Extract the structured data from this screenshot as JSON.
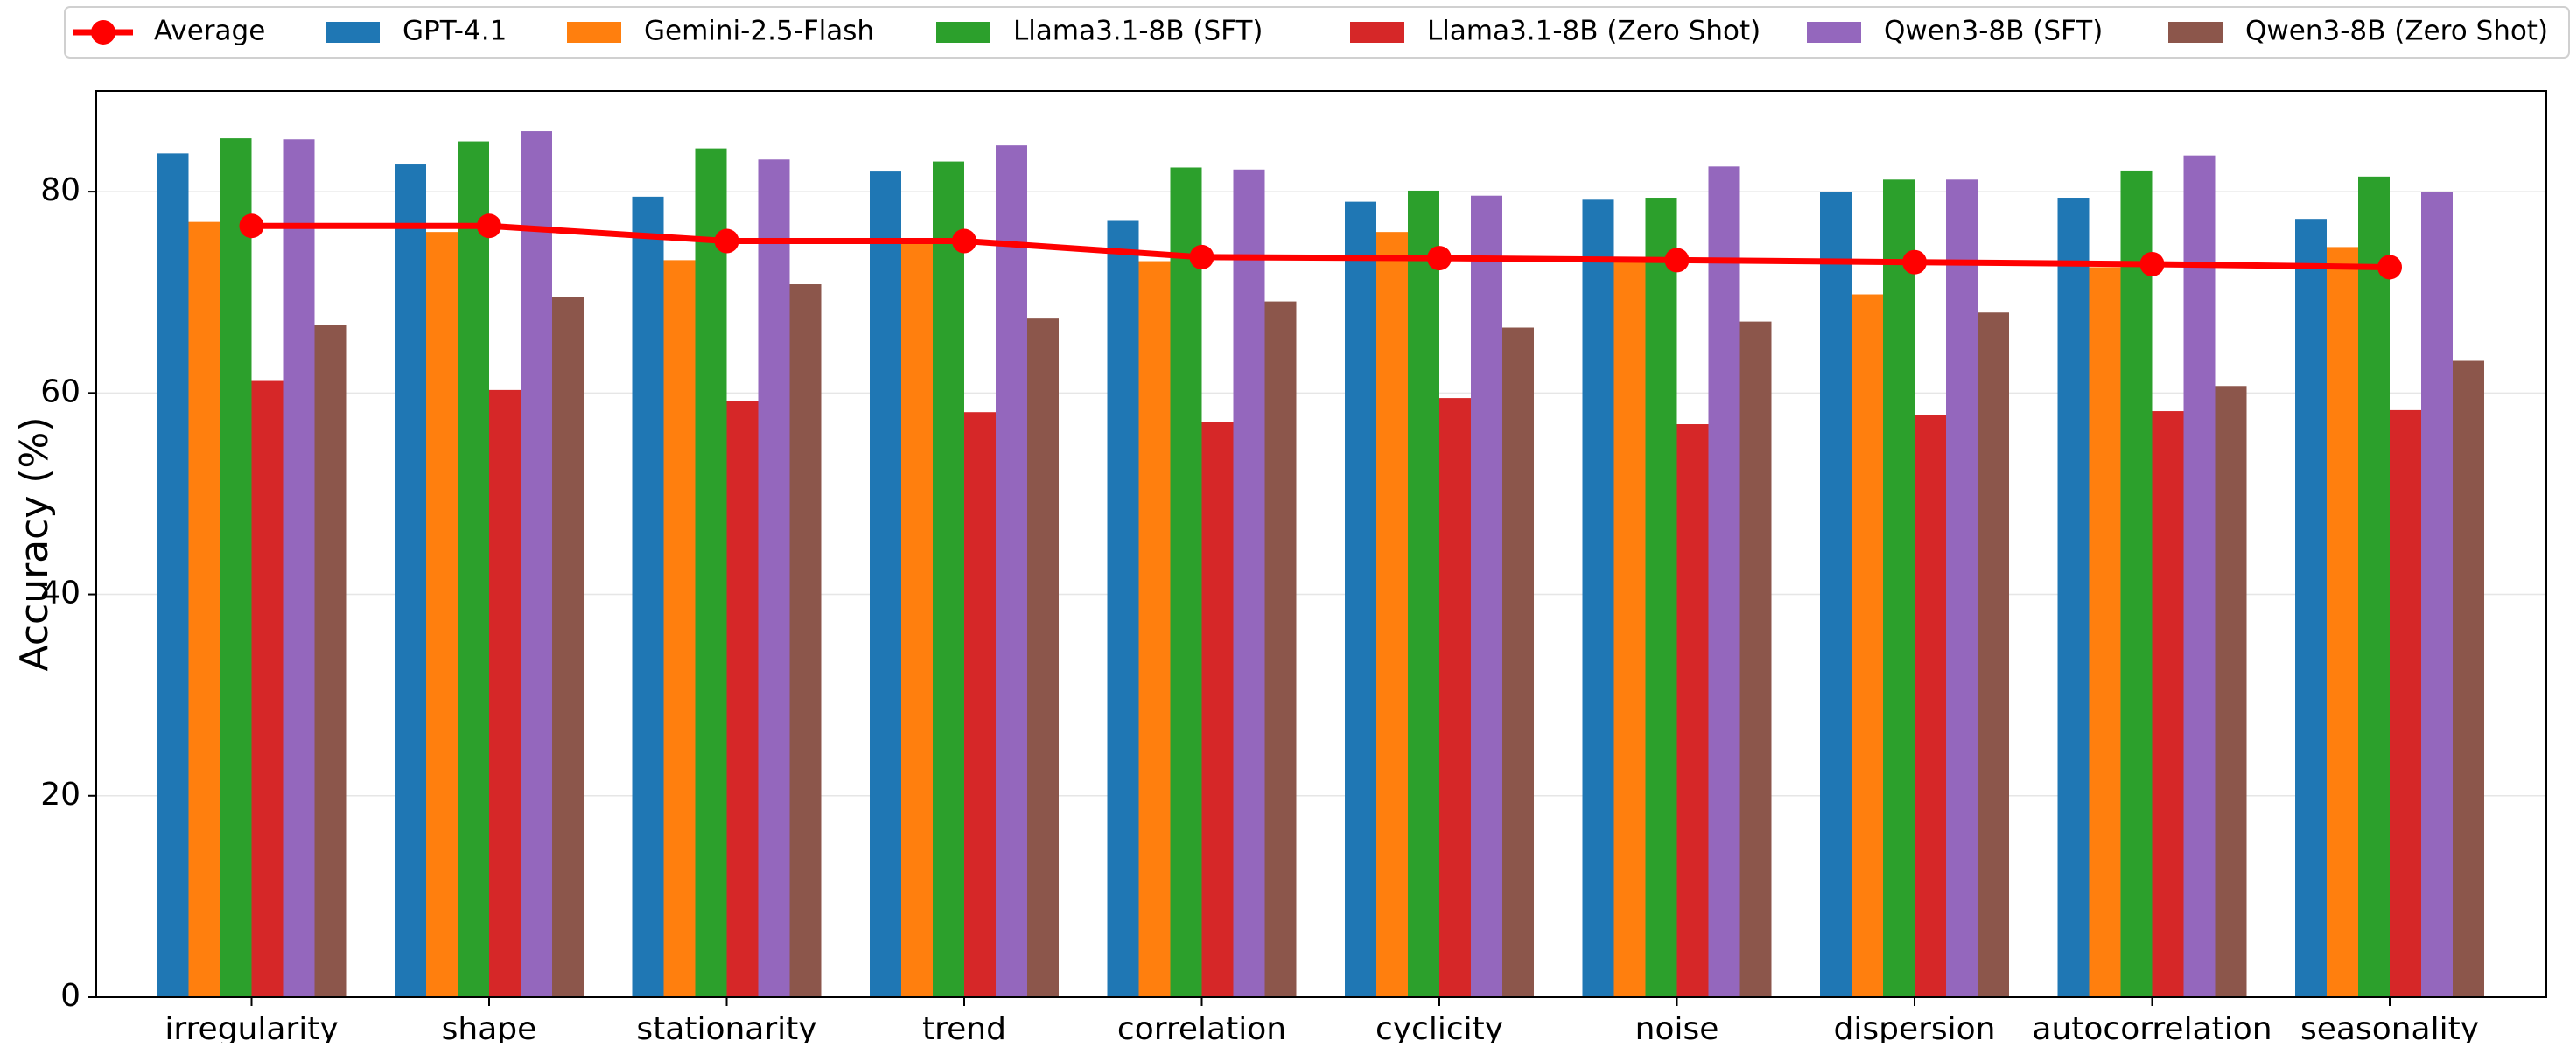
{
  "chart_data": {
    "type": "bar",
    "title": "",
    "xlabel": "",
    "ylabel": "Accuracy (%)",
    "ylim": [
      0,
      90
    ],
    "yticks": [
      0,
      20,
      40,
      60,
      80
    ],
    "grid": true,
    "legend_position": "top",
    "categories": [
      "irregularity",
      "shape",
      "stationarity",
      "trend",
      "correlation",
      "cyclicity",
      "noise",
      "dispersion",
      "autocorrelation",
      "seasonality"
    ],
    "series": [
      {
        "name": "GPT-4.1",
        "color": "#1f77b4",
        "values": [
          83.8,
          82.7,
          79.5,
          82.0,
          77.1,
          79.0,
          79.2,
          80.0,
          79.4,
          77.3
        ]
      },
      {
        "name": "Gemini-2.5-Flash",
        "color": "#ff7f0e",
        "values": [
          77.0,
          76.0,
          73.2,
          75.0,
          73.1,
          76.0,
          73.5,
          69.8,
          72.5,
          74.5
        ]
      },
      {
        "name": "Llama3.1-8B (SFT)",
        "color": "#2ca02c",
        "values": [
          85.3,
          85.0,
          84.3,
          83.0,
          82.4,
          80.1,
          79.4,
          81.2,
          82.1,
          81.5
        ]
      },
      {
        "name": "Llama3.1-8B (Zero Shot)",
        "color": "#d62728",
        "values": [
          61.2,
          60.3,
          59.2,
          58.1,
          57.1,
          59.5,
          56.9,
          57.8,
          58.2,
          58.3
        ]
      },
      {
        "name": "Qwen3-8B (SFT)",
        "color": "#9467bd",
        "values": [
          85.2,
          86.0,
          83.2,
          84.6,
          82.2,
          79.6,
          82.5,
          81.2,
          83.6,
          80.0
        ]
      },
      {
        "name": "Qwen3-8B (Zero Shot)",
        "color": "#8c564b",
        "values": [
          66.8,
          69.5,
          70.8,
          67.4,
          69.1,
          66.5,
          67.1,
          68.0,
          60.7,
          63.2
        ]
      }
    ],
    "line": {
      "name": "Average",
      "color": "#ff0000",
      "values": [
        76.6,
        76.6,
        75.1,
        75.1,
        73.5,
        73.4,
        73.2,
        73.0,
        72.8,
        72.5
      ]
    }
  }
}
